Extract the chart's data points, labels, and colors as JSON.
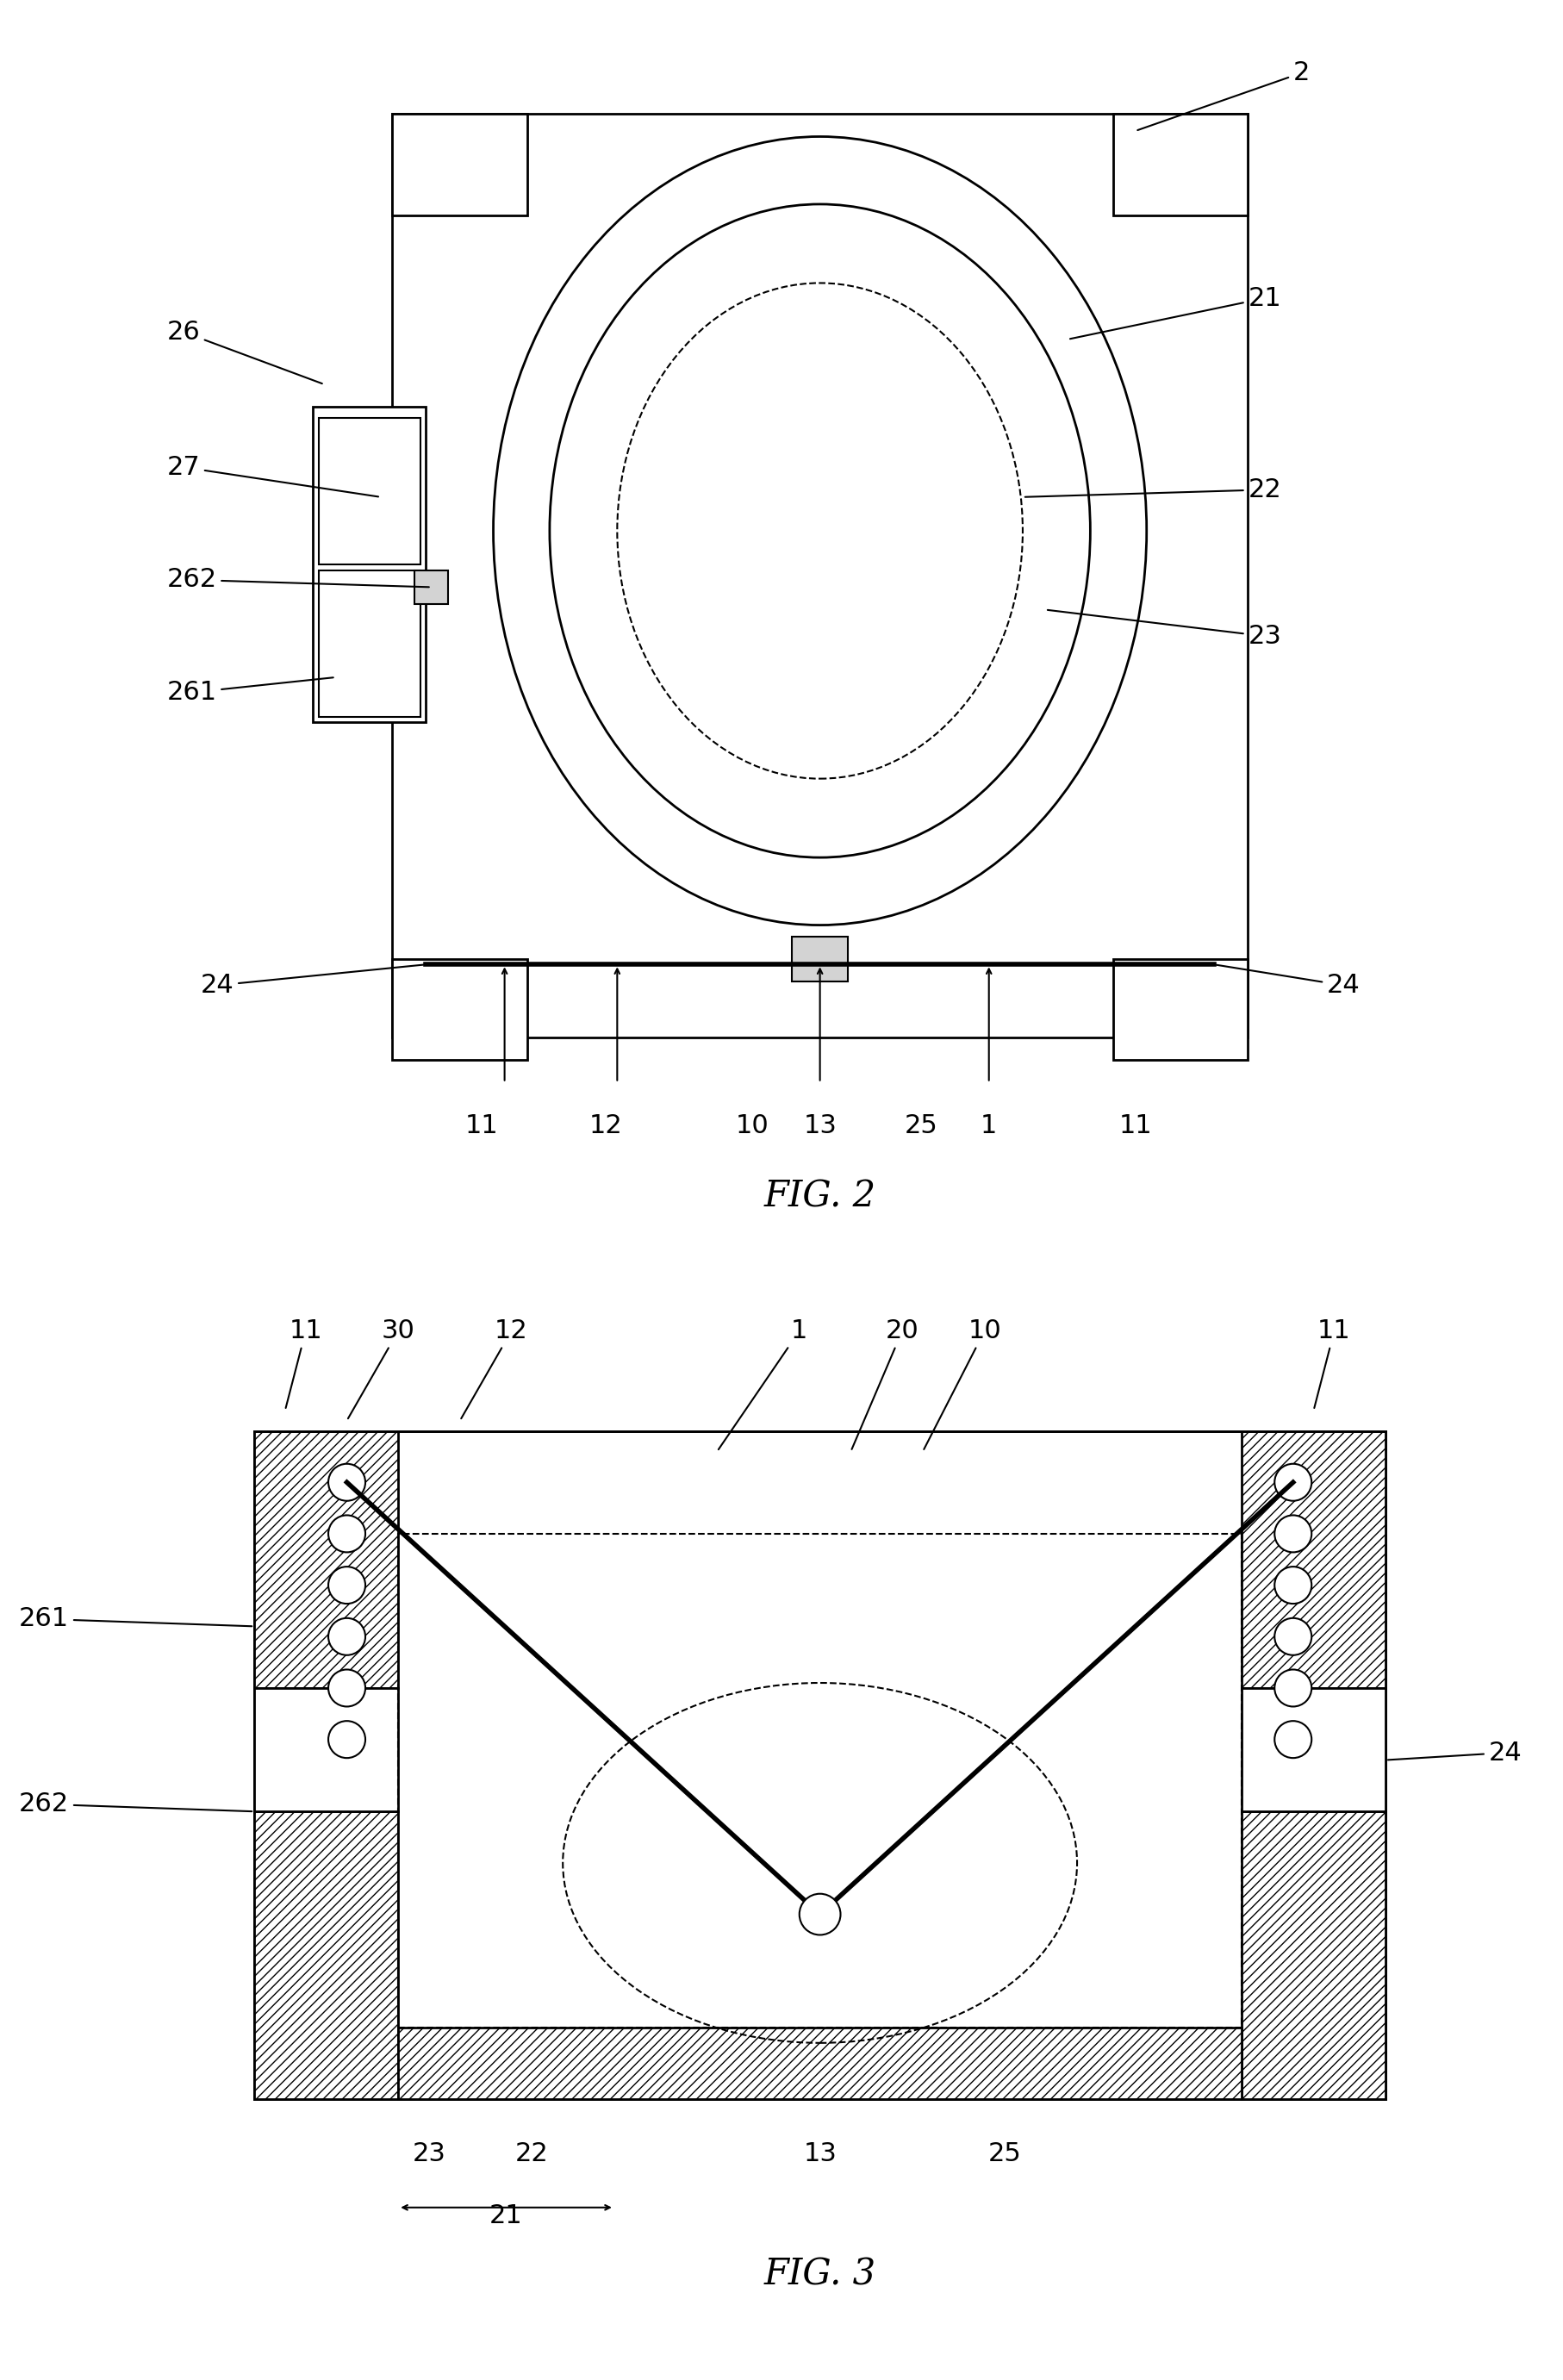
{
  "bg_color": "#ffffff",
  "line_color": "#000000",
  "fig2_title": "FIG. 2",
  "fig3_title": "FIG. 3",
  "font_size_label": 22,
  "font_size_title": 30
}
